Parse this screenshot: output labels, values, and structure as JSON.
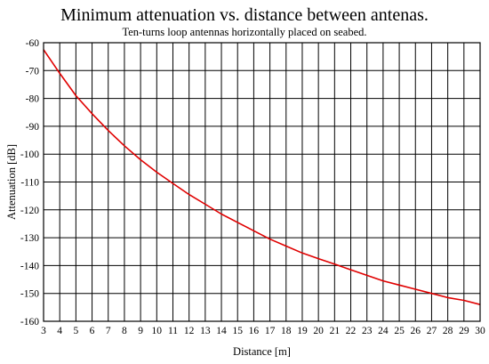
{
  "chart_data": {
    "type": "line",
    "title": "Minimum attenuation vs. distance between antenas.",
    "subtitle": "Ten-turns loop antennas horizontally placed on seabed.",
    "xlabel": "Distance [m]",
    "ylabel": "Attenuation [dB]",
    "xlim": [
      3,
      30
    ],
    "ylim": [
      -160,
      -60
    ],
    "xticks": [
      3,
      4,
      5,
      6,
      7,
      8,
      9,
      10,
      11,
      12,
      13,
      14,
      15,
      16,
      17,
      18,
      19,
      20,
      21,
      22,
      23,
      24,
      25,
      26,
      27,
      28,
      29,
      30
    ],
    "yticks": [
      -60,
      -70,
      -80,
      -90,
      -100,
      -110,
      -120,
      -130,
      -140,
      -150,
      -160
    ],
    "grid": true,
    "series": [
      {
        "color": "#e00000",
        "x": [
          3,
          4,
          5,
          6,
          7,
          8,
          9,
          10,
          11,
          12,
          13,
          14,
          15,
          16,
          17,
          18,
          19,
          20,
          21,
          22,
          23,
          24,
          25,
          26,
          27,
          28,
          29,
          30
        ],
        "y": [
          -62.5,
          -71,
          -79,
          -85.5,
          -91.5,
          -97,
          -102,
          -106.5,
          -110.5,
          -114.5,
          -118,
          -121.5,
          -124.5,
          -127.5,
          -130.5,
          -133,
          -135.5,
          -137.5,
          -139.5,
          -141.5,
          -143.5,
          -145.5,
          -147,
          -148.5,
          -150,
          -151.5,
          -152.5,
          -154
        ]
      }
    ]
  }
}
